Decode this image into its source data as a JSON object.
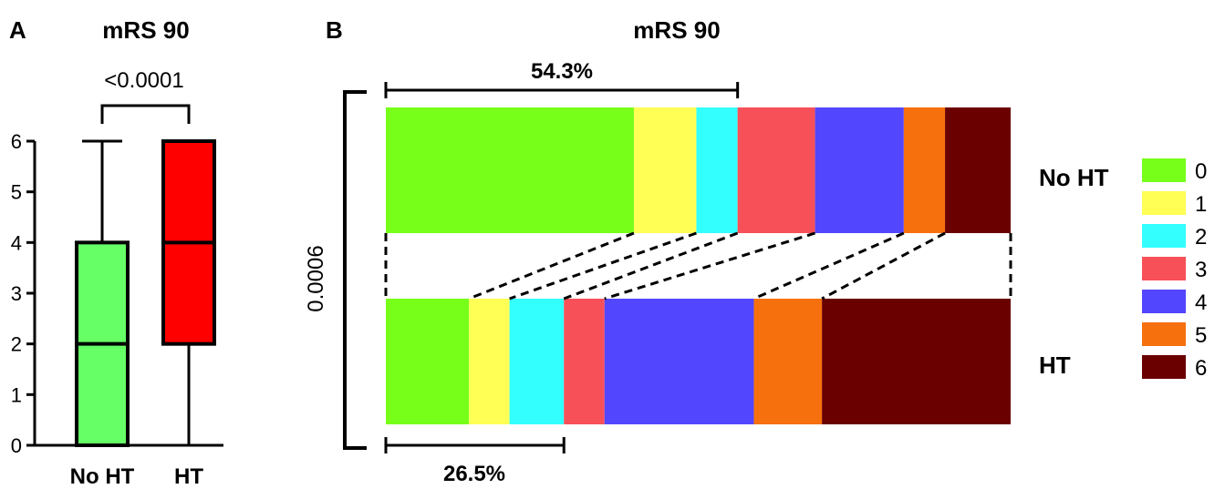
{
  "chart_data": [
    {
      "panel": "A",
      "type": "box",
      "title": "mRS 90",
      "categories": [
        "No HT",
        "HT"
      ],
      "boxes": [
        {
          "min": 0,
          "q1": 0,
          "median": 2,
          "q3": 4,
          "max": 6,
          "color": "#66ff66"
        },
        {
          "min": 0,
          "q1": 2,
          "median": 4,
          "q3": 6,
          "max": 6,
          "color": "#ff0000"
        }
      ],
      "yticks": [
        0,
        1,
        2,
        3,
        4,
        5,
        6
      ],
      "ylim": [
        0,
        6
      ],
      "annotation": "<0.0001"
    },
    {
      "panel": "B",
      "type": "bar",
      "stacked": true,
      "orientation": "horizontal",
      "title": "mRS 90",
      "categories": [
        "No HT",
        "HT"
      ],
      "series": [
        {
          "name": "0",
          "color": "#77ff1a",
          "values": [
            39.7,
            13.3
          ]
        },
        {
          "name": "1",
          "color": "#ffff55",
          "values": [
            10.0,
            6.5
          ]
        },
        {
          "name": "2",
          "color": "#33ffff",
          "values": [
            6.6,
            8.7
          ]
        },
        {
          "name": "3",
          "color": "#f75058",
          "values": [
            12.4,
            6.5
          ]
        },
        {
          "name": "4",
          "color": "#5346ff",
          "values": [
            14.2,
            23.9
          ]
        },
        {
          "name": "5",
          "color": "#f7700e",
          "values": [
            6.6,
            10.9
          ]
        },
        {
          "name": "6",
          "color": "#6a0000",
          "values": [
            10.5,
            30.2
          ]
        }
      ],
      "xlim": [
        0,
        100
      ],
      "annotations": {
        "no_ht_good_outcome": "54.3%",
        "ht_good_outcome": "26.5%",
        "p_value": "0.0006"
      },
      "legend": "right"
    }
  ]
}
